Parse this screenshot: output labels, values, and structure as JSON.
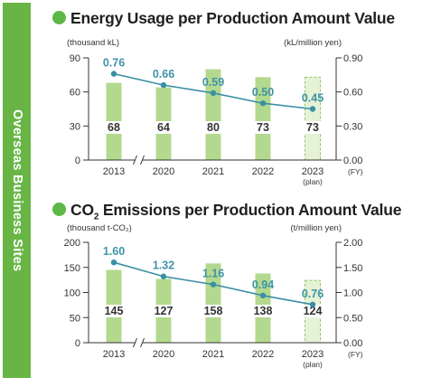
{
  "side_label": "Overseas Business Sites",
  "colors": {
    "banner": "#68b546",
    "bar": "#b3d98e",
    "plan_bar": "#e5f2d6",
    "line": "#3a8fa5",
    "point_label": "#3f93a8",
    "title_dot": "#5db848"
  },
  "chart_data": [
    {
      "type": "bar",
      "title": "Energy Usage per Production Amount Value",
      "y_unit": "(thousand kL)",
      "y2_unit": "(kL/million yen)",
      "x_unit": "(FY)",
      "categories": [
        "2013",
        "2020",
        "2021",
        "2022",
        "2023"
      ],
      "category_notes": [
        "",
        "",
        "",
        "",
        "(plan)"
      ],
      "ylim": [
        0,
        90
      ],
      "yticks": [
        "0",
        "30",
        "60",
        "90"
      ],
      "y2lim": [
        0,
        0.9
      ],
      "y2ticks": [
        "0.00",
        "0.30",
        "0.60",
        "0.90"
      ],
      "axis_break_after": "2013",
      "grid": false,
      "bars": {
        "values": [
          68,
          64,
          80,
          73,
          73
        ],
        "labels": [
          "68",
          "64",
          "80",
          "73",
          "73"
        ]
      },
      "line": {
        "axis": "right",
        "values": [
          0.76,
          0.66,
          0.59,
          0.5,
          0.45
        ],
        "labels": [
          "0.76",
          "0.66",
          "0.59",
          "0.50",
          "0.45"
        ]
      }
    },
    {
      "type": "bar",
      "title": "CO",
      "title_sub": "2",
      "title_rest": " Emissions per Production Amount Value",
      "y_unit": "(thousand t-CO₂)",
      "y2_unit": "(t/million yen)",
      "x_unit": "(FY)",
      "categories": [
        "2013",
        "2020",
        "2021",
        "2022",
        "2023"
      ],
      "category_notes": [
        "",
        "",
        "",
        "",
        "(plan)"
      ],
      "ylim": [
        0,
        200
      ],
      "yticks": [
        "0",
        "50",
        "100",
        "150",
        "200"
      ],
      "y2lim": [
        0,
        2
      ],
      "y2ticks": [
        "0.00",
        "0.50",
        "1.00",
        "1.50",
        "2.00"
      ],
      "axis_break_after": "2013",
      "grid": false,
      "bars": {
        "values": [
          145,
          127,
          158,
          138,
          124
        ],
        "labels": [
          "145",
          "127",
          "158",
          "138",
          "124"
        ]
      },
      "line": {
        "axis": "right",
        "values": [
          1.6,
          1.32,
          1.16,
          0.94,
          0.76
        ],
        "labels": [
          "1.60",
          "1.32",
          "1.16",
          "0.94",
          "0.76"
        ]
      }
    }
  ]
}
